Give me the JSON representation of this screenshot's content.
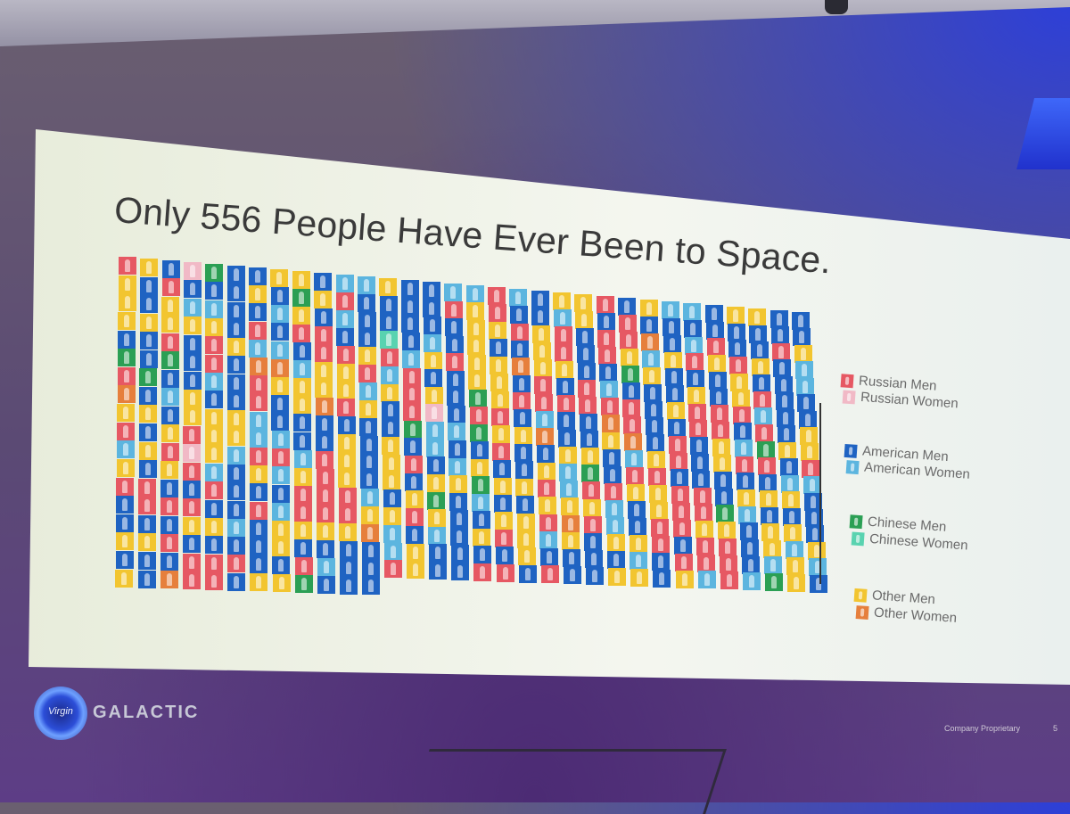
{
  "slide": {
    "title": "Only 556 People Have Ever Been to Space.",
    "footer": "Company Proprietary",
    "page_number": "5"
  },
  "logo": {
    "mark_text": "Virgin",
    "wordmark": "GALACTIC"
  },
  "legend": [
    {
      "key": "russian_men",
      "label": "Russian Men",
      "color": "#e65863"
    },
    {
      "key": "russian_women",
      "label": "Russian Women",
      "color": "#f1b9c6"
    },
    {
      "key": "american_men",
      "label": "American Men",
      "color": "#1f63c2"
    },
    {
      "key": "american_women",
      "label": "American Women",
      "color": "#5cb5df"
    },
    {
      "key": "chinese_men",
      "label": "Chinese Men",
      "color": "#2b9f54"
    },
    {
      "key": "chinese_women",
      "label": "Chinese Women",
      "color": "#59d3b0"
    },
    {
      "key": "other_men",
      "label": "Other Men",
      "color": "#f2c530"
    },
    {
      "key": "other_women",
      "label": "Other Women",
      "color": "#e67f3c"
    }
  ],
  "waffle": {
    "total": 556,
    "rows": 20,
    "icon": "person-icon"
  }
}
